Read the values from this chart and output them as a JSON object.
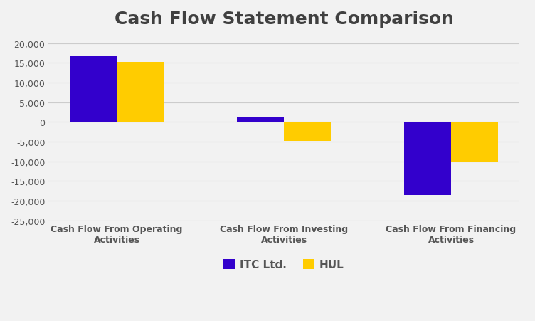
{
  "title": "Cash Flow Statement Comparison",
  "categories": [
    "Cash Flow From Operating\nActivities",
    "Cash Flow From Investing\nActivities",
    "Cash Flow From Financing\nActivities"
  ],
  "itc_values": [
    16800,
    1400,
    -18500
  ],
  "hul_values": [
    15200,
    -4800,
    -10000
  ],
  "itc_color": "#3300cc",
  "hul_color": "#ffcc00",
  "bar_width": 0.28,
  "ylim": [
    -25000,
    22000
  ],
  "yticks": [
    -25000,
    -20000,
    -15000,
    -10000,
    -5000,
    0,
    5000,
    10000,
    15000,
    20000
  ],
  "legend_labels": [
    "ITC Ltd.",
    "HUL"
  ],
  "title_fontsize": 18,
  "tick_fontsize": 9,
  "label_fontsize": 9,
  "background_color": "#f2f2f2",
  "grid_color": "#cccccc"
}
